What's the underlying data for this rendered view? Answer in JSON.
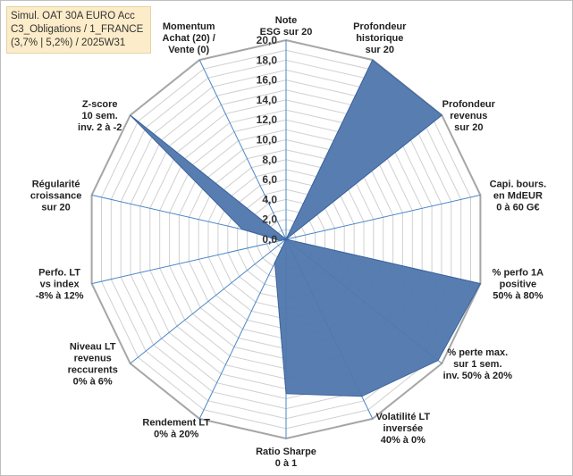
{
  "title": {
    "line1": "Simul. OAT 30A EURO Acc",
    "line2": "C3_Obligations / 1_FRANCE",
    "line3": "(3,7% | 5,2%) / 2025W31"
  },
  "chart_data": {
    "type": "radar",
    "categories": [
      "Note ESG sur 20",
      "Profondeur historique sur 20",
      "Profondeur revenus sur 20",
      "Capi. bours. en MdEUR 0 à 60 G€",
      "% perfo 1A positive 50% à 80%",
      "% perte max. sur 1 sem. inv. 50% à 20%",
      "Volatilité LT inversée 40% à 0%",
      "Ratio Sharpe 0 à 1",
      "Rendement LT 0% à 20%",
      "Niveau LT revenus reccurents 0% à 6%",
      "Perfo. LT vs index -8% à 12%",
      "Régularité croissance sur 20",
      "Z-score 10 sem. inv. 2 à -2",
      "Momentum Achat (20) / Vente (0)"
    ],
    "category_lines": [
      [
        "Note",
        "ESG sur 20"
      ],
      [
        "Profondeur",
        "historique",
        "sur 20"
      ],
      [
        "Profondeur",
        "revenus",
        "sur 20"
      ],
      [
        "Capi. bours.",
        "en MdEUR",
        "0 à 60 G€"
      ],
      [
        "% perfo 1A",
        "positive",
        "50% à 80%"
      ],
      [
        "% perte max.",
        "sur 1 sem.",
        "inv. 50% à 20%"
      ],
      [
        "Volatilité LT",
        "inversée",
        "40% à 0%"
      ],
      [
        "Ratio Sharpe",
        "0 à 1"
      ],
      [
        "Rendement LT",
        "0% à 20%"
      ],
      [
        "Niveau LT",
        "revenus",
        "reccurents",
        "0% à 6%"
      ],
      [
        "Perfo. LT",
        "vs index",
        "-8% à 12%"
      ],
      [
        "Régularité",
        "croissance",
        "sur 20"
      ],
      [
        "Z-score",
        "10 sem.",
        "inv. 2 à -2"
      ],
      [
        "Momentum",
        "Achat (20) /",
        "Vente (0)"
      ]
    ],
    "series": [
      {
        "values": [
          0,
          20,
          20,
          0,
          20,
          19.5,
          17.5,
          15.5,
          2.6,
          0,
          0.6,
          4.5,
          20,
          0
        ]
      }
    ],
    "rlim": [
      0,
      20
    ],
    "rticks": [
      "0,0",
      "2,0",
      "4,0",
      "6,0",
      "8,0",
      "10,0",
      "12,0",
      "14,0",
      "16,0",
      "18,0",
      "20,0"
    ],
    "colors": {
      "fill": "#4f77ad",
      "stroke": "#3c639c",
      "spoke": "#4a86c8",
      "grid": "#d0d0d0",
      "outer": "#a6a6a6"
    }
  }
}
